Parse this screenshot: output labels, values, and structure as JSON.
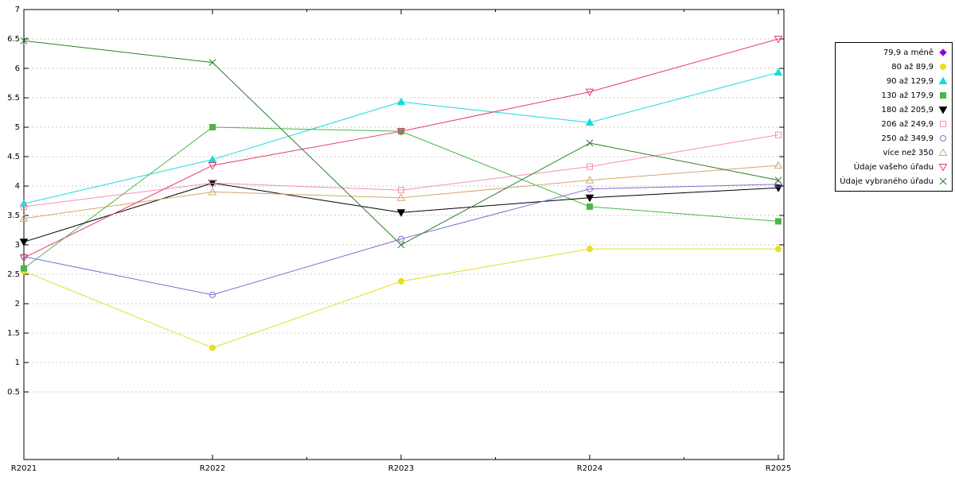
{
  "chart_data": {
    "type": "line",
    "title": "",
    "xlabel": "",
    "ylabel": "",
    "grid": true,
    "legend_position": "top-right",
    "x_categories": [
      "R2021",
      "R2022",
      "R2023",
      "R2024",
      "R2025"
    ],
    "y_ticks": [
      0.5,
      1,
      1.5,
      2,
      2.5,
      3,
      3.5,
      4,
      4.5,
      5,
      5.5,
      6,
      6.5,
      7
    ],
    "ylim": [
      0,
      7
    ],
    "series": [
      {
        "name": "79,9 a méně",
        "color": "#9400d3",
        "marker": "diamond-filled",
        "values": [
          null,
          null,
          null,
          null,
          null
        ]
      },
      {
        "name": "80 až 89,9",
        "color": "#e6df22",
        "marker": "circle-filled",
        "values": [
          2.55,
          1.25,
          2.38,
          2.93,
          2.93
        ]
      },
      {
        "name": "90 až 129,9",
        "color": "#16dbdb",
        "marker": "triangle-up-filled",
        "values": [
          3.7,
          4.45,
          5.43,
          5.08,
          5.93
        ]
      },
      {
        "name": "130 až 179,9",
        "color": "#4cb648",
        "marker": "square-filled",
        "values": [
          2.6,
          5.0,
          4.93,
          3.65,
          3.4
        ]
      },
      {
        "name": "180 až 205,9",
        "color": "#000000",
        "marker": "triangle-down-filled",
        "values": [
          3.05,
          4.05,
          3.55,
          3.8,
          3.97
        ]
      },
      {
        "name": "206 až 249,9",
        "color": "#f591b2",
        "marker": "square-open",
        "values": [
          3.65,
          4.05,
          3.93,
          4.33,
          4.87
        ]
      },
      {
        "name": "250 až 349,9",
        "color": "#7f6ed2",
        "marker": "circle-open",
        "values": [
          2.8,
          2.15,
          3.1,
          3.95,
          4.03
        ]
      },
      {
        "name": "více než 350",
        "color": "#d0a96e",
        "marker": "triangle-up-open",
        "values": [
          3.45,
          3.9,
          3.8,
          4.1,
          4.35
        ]
      },
      {
        "name": "Údaje vašeho úřadu",
        "color": "#e63a70",
        "marker": "triangle-down-open",
        "values": [
          2.78,
          4.35,
          4.93,
          5.6,
          6.5
        ]
      },
      {
        "name": "Údaje vybraného úřadu",
        "color": "#2a7e2a",
        "marker": "x-cross",
        "values": [
          6.47,
          6.1,
          3.0,
          4.73,
          4.1
        ]
      }
    ],
    "colors": {
      "grid": "#c8c8c8",
      "axis": "#000000",
      "background": "#ffffff"
    }
  }
}
